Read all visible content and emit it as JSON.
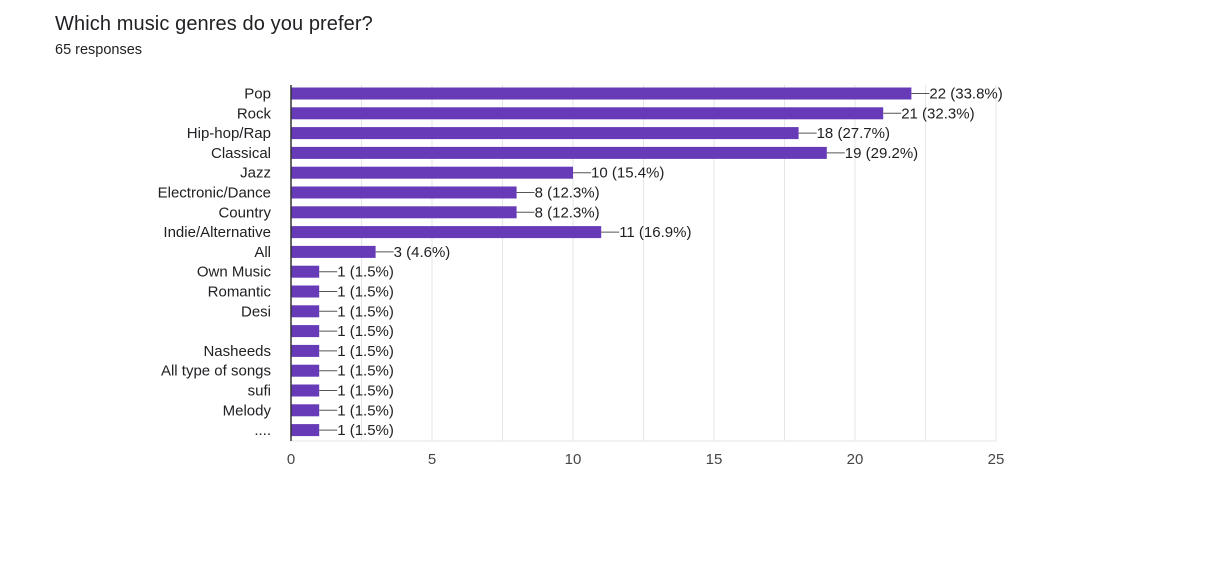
{
  "question": {
    "title": "Which music genres do you prefer?",
    "responses": "65 responses"
  },
  "colors": {
    "bar": "#673ab7",
    "grid": "#e6e6e6",
    "axis": "#333333",
    "leader": "#555555"
  },
  "chart_data": {
    "type": "bar",
    "orientation": "horizontal",
    "categories": [
      "Pop",
      "Rock",
      "Hip-hop/Rap",
      "Classical",
      "Jazz",
      "Electronic/Dance",
      "Country",
      "Indie/Alternative",
      "All",
      "Own Music",
      "Romantic",
      "Desi",
      "",
      "Nasheeds",
      "All type of songs",
      "sufi",
      "Melody",
      "...."
    ],
    "values": [
      22,
      21,
      18,
      19,
      10,
      8,
      8,
      11,
      3,
      1,
      1,
      1,
      1,
      1,
      1,
      1,
      1,
      1
    ],
    "data_labels": [
      "22 (33.8%)",
      "21 (32.3%)",
      "18 (27.7%)",
      "19 (29.2%)",
      "10 (15.4%)",
      "8 (12.3%)",
      "8 (12.3%)",
      "11 (16.9%)",
      "3 (4.6%)",
      "1 (1.5%)",
      "1 (1.5%)",
      "1 (1.5%)",
      "1 (1.5%)",
      "1 (1.5%)",
      "1 (1.5%)",
      "1 (1.5%)",
      "1 (1.5%)",
      "1 (1.5%)"
    ],
    "xlim": [
      0,
      25
    ],
    "xticks": [
      0,
      5,
      10,
      15,
      20,
      25
    ],
    "grid": true,
    "title": "",
    "xlabel": "",
    "ylabel": ""
  }
}
